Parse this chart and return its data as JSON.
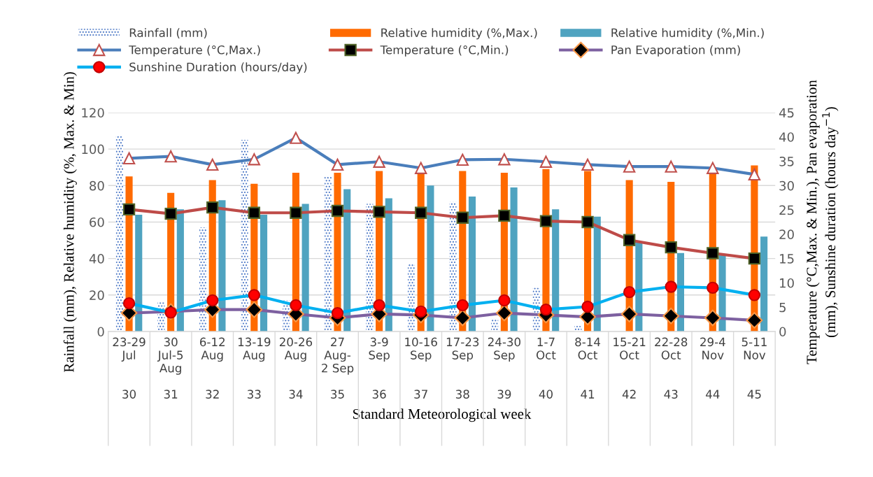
{
  "chart_data": {
    "type": "bar",
    "xlabel": "Standard Meteorological week",
    "ylabel": "Rainfall (mm), Relative humidity (%, Max. & Min)",
    "y2label": "Temperature (°C,Max. & Min.), Pan evaporation\n(mm), Sunshine duration (hours day$^{−1}$)",
    "categories": [
      "23-29\nJul\n\n\n30",
      "30\nJul-5\nAug\n\n31",
      "6-12\nAug\n\n\n32",
      "13-19\nAug\n\n\n33",
      "20-26\nAug\n\n\n34",
      "27\nAug-\n2 Sep\n\n35",
      "3-9\nSep\n\n\n36",
      "10-16\nSep\n\n\n37",
      "17-23\nSep\n\n\n38",
      "24-30\nSep\n\n\n39",
      "1-7\nOct\n\n\n40",
      "8-14\nOct\n\n\n41",
      "15-21\nOct\n\n\n42",
      "22-28\nOct\n\n\n43",
      "29-4\nNov\n\n\n44",
      "5-11\nNov\n\n\n45"
    ],
    "ylim": [
      0,
      120
    ],
    "yticks": [
      0,
      20,
      40,
      60,
      80,
      100,
      120
    ],
    "y2lim": [
      0,
      45
    ],
    "y2ticks": [
      0,
      5,
      10,
      15,
      20,
      25,
      30,
      35,
      40,
      45
    ],
    "grid": "y",
    "legend": "top",
    "series": [
      {
        "name": "Rainfall (mm)",
        "color": "#4472c4",
        "values": [
          107,
          16,
          57,
          105,
          17,
          85,
          70,
          37,
          71,
          7,
          24,
          3,
          0,
          0,
          0,
          0
        ]
      },
      {
        "name": "Relative humidity (%,Max.)",
        "color": "#ff6a00",
        "values": [
          85,
          76,
          83,
          81,
          87,
          87,
          88,
          87,
          88,
          87,
          89,
          88,
          83,
          82,
          87,
          91
        ]
      },
      {
        "name": "Relative humidity (%,Min.)",
        "color": "#4fa3c0",
        "values": [
          64,
          67,
          72,
          64,
          70,
          78,
          73,
          80,
          74,
          79,
          67,
          63,
          49,
          43,
          42,
          52
        ]
      },
      {
        "name": "Temperature (°C,Max.)",
        "type": "line",
        "axis": "y2",
        "color": "#4a7ebb",
        "marker": "triangle",
        "values": [
          35.6,
          36.0,
          34.3,
          35.4,
          39.8,
          34.3,
          34.9,
          33.6,
          35.3,
          35.4,
          34.9,
          34.3,
          33.9,
          33.9,
          33.6,
          32.3
        ]
      },
      {
        "name": "Temperature (°C,Min.)",
        "type": "line",
        "axis": "y2",
        "color": "#be4b48",
        "marker": "square",
        "values": [
          25.1,
          24.2,
          25.5,
          24.4,
          24.4,
          24.8,
          24.6,
          24.4,
          23.4,
          23.8,
          22.7,
          22.5,
          18.8,
          17.3,
          16.1,
          15.0
        ]
      },
      {
        "name": "Pan Evaporation (mm)",
        "type": "line",
        "axis": "y2",
        "color": "#7d60a0",
        "marker": "diamond",
        "values": [
          3.8,
          4.1,
          4.5,
          4.5,
          3.6,
          2.8,
          3.6,
          3.4,
          2.8,
          3.8,
          3.4,
          3.0,
          3.6,
          3.2,
          2.8,
          2.3
        ]
      },
      {
        "name": "Sunshine Duration (hours/day)",
        "type": "line",
        "axis": "y2",
        "color": "#00b0f0",
        "marker": "circle",
        "values": [
          5.8,
          3.9,
          6.4,
          7.5,
          5.4,
          3.8,
          5.4,
          4.1,
          5.4,
          6.4,
          4.5,
          5.1,
          8.1,
          9.2,
          9.0,
          7.5
        ]
      }
    ]
  }
}
